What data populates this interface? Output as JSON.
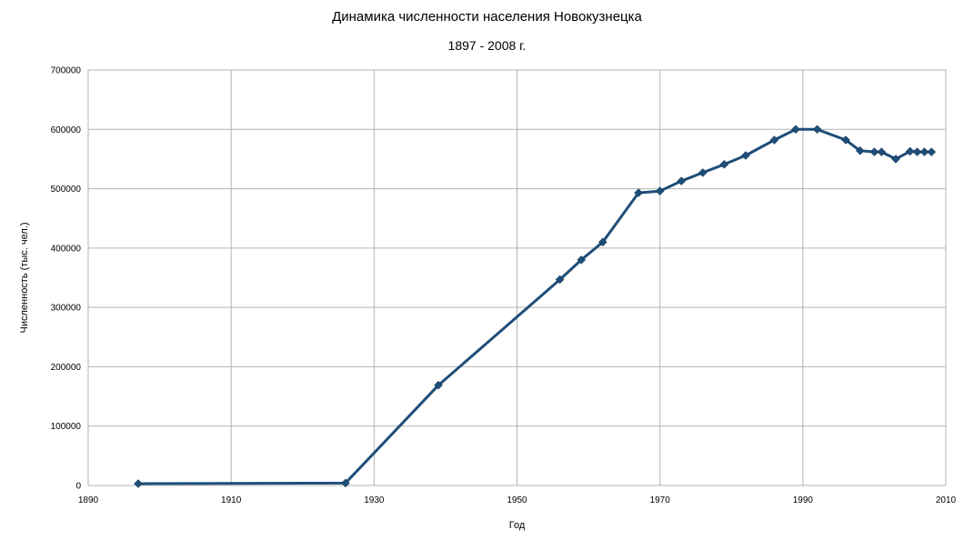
{
  "chart_data": {
    "type": "line",
    "title": "Динамика численности населения Новокузнецка",
    "subtitle": "1897 - 2008 г.",
    "xlabel": "Год",
    "ylabel": "Численность (тыс. чел.)",
    "xlim": [
      1890,
      2010
    ],
    "ylim": [
      0,
      700000
    ],
    "x_ticks": [
      1890,
      1910,
      1930,
      1950,
      1970,
      1990,
      2010
    ],
    "y_ticks": [
      0,
      100000,
      200000,
      300000,
      400000,
      500000,
      600000,
      700000
    ],
    "grid": true,
    "legend": "none",
    "series_color": "#1f4e79",
    "grid_color": "#b3b3b3",
    "series": [
      {
        "x": [
          1897,
          1926,
          1939,
          1956,
          1959,
          1962,
          1967,
          1970,
          1973,
          1976,
          1979,
          1982,
          1986,
          1989,
          1992,
          1996,
          1998,
          2000,
          2001,
          2003,
          2005,
          2006,
          2007,
          2008
        ],
        "y": [
          3000,
          4000,
          169000,
          347000,
          380000,
          410000,
          493000,
          496000,
          513000,
          527000,
          541000,
          556000,
          582000,
          600000,
          600000,
          582000,
          564000,
          562000,
          562000,
          550000,
          563000,
          562000,
          562000,
          562000
        ]
      }
    ]
  }
}
